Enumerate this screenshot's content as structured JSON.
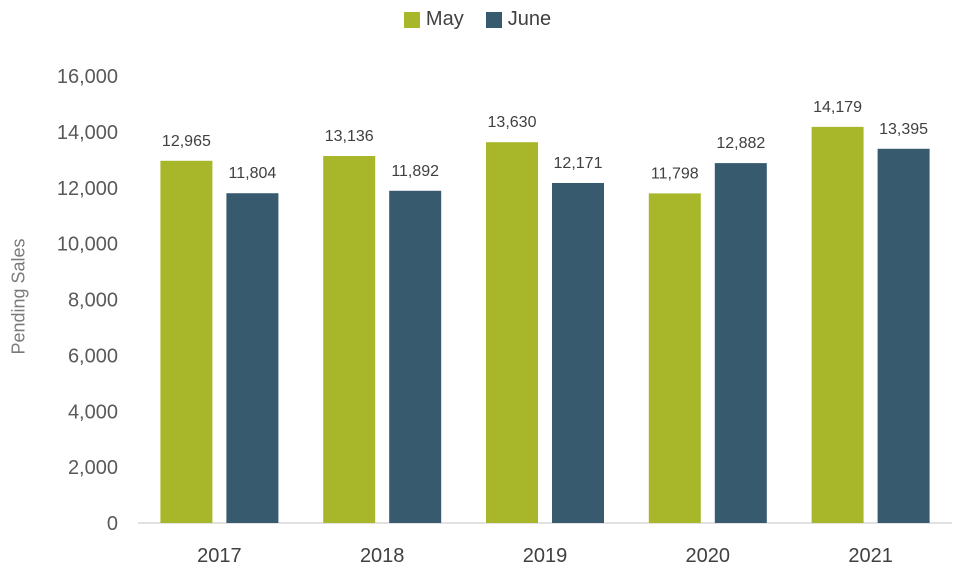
{
  "chart_data": {
    "type": "bar",
    "categories": [
      "2017",
      "2018",
      "2019",
      "2020",
      "2021"
    ],
    "series": [
      {
        "name": "May",
        "values": [
          12965,
          13136,
          13630,
          11798,
          14179
        ],
        "color": "#a8b72a",
        "labels": [
          "12,965",
          "13,136",
          "13,630",
          "11,798",
          "14,179"
        ]
      },
      {
        "name": "June",
        "values": [
          11804,
          11892,
          12171,
          12882,
          13395
        ],
        "color": "#385a6e",
        "labels": [
          "11,804",
          "11,892",
          "12,171",
          "12,882",
          "13,395"
        ]
      }
    ],
    "ylabel": "Pending Sales",
    "ylim": [
      0,
      16000
    ],
    "yticks": [
      0,
      2000,
      4000,
      6000,
      8000,
      10000,
      12000,
      14000,
      16000
    ],
    "ytick_labels": [
      "0",
      "2,000",
      "4,000",
      "6,000",
      "8,000",
      "10,000",
      "12,000",
      "14,000",
      "16,000"
    ],
    "legend": "top-center",
    "grid": false
  }
}
